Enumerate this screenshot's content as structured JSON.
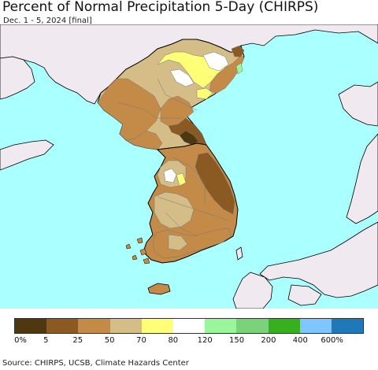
{
  "header": {
    "title": "Percent of Normal Precipitation 5-Day (CHIRPS)",
    "subtitle": "Dec. 1 - 5, 2024 [final]"
  },
  "map": {
    "colors": {
      "ocean": "#aaffff",
      "foreign_land": "#f0eaf0",
      "coast_line": "#000000",
      "border_line": "#777777",
      "water_mask": "#ffffff"
    }
  },
  "legend": {
    "colors": [
      "#4f3810",
      "#8a5a22",
      "#c48b48",
      "#d5bd87",
      "#fdff77",
      "#ffffff",
      "#9bf59b",
      "#7ad27a",
      "#36b01c",
      "#7dc6ff",
      "#1f78b8"
    ],
    "labels": [
      "0%",
      "5",
      "25",
      "50",
      "70",
      "80",
      "120",
      "150",
      "200",
      "400",
      "600%"
    ]
  },
  "footer": {
    "source": "Source: CHIRPS, UCSB, Climate Hazards Center"
  }
}
